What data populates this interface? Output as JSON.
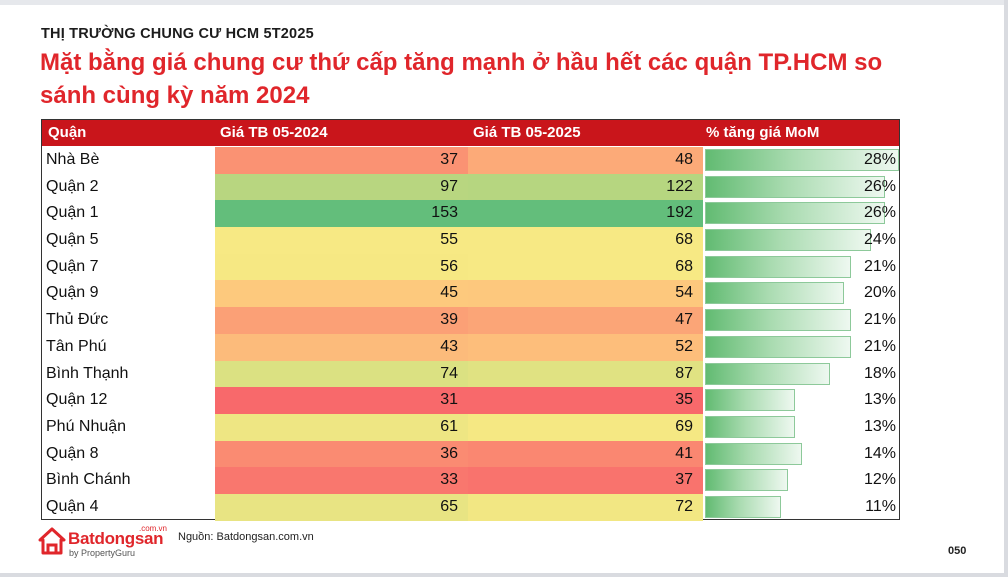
{
  "kicker": "THỊ TRƯỜNG CHUNG CƯ HCM 5T2025",
  "headline": "Mặt bằng giá chung cư thứ cấp tăng mạnh ở hầu hết các quận TP.HCM so sánh cùng kỳ năm 2024",
  "table": {
    "headers": {
      "district": "Quận",
      "price_2024": "Giá TB 05-2024",
      "price_2025": "Giá TB 05-2025",
      "mom": "% tăng giá MoM"
    }
  },
  "chart_data": {
    "type": "table",
    "columns": [
      "Quận",
      "Giá TB 05-2024",
      "Giá TB 05-2025",
      "% tăng giá MoM"
    ],
    "rows": [
      {
        "district": "Nhà Bè",
        "p24": 37,
        "p25": 48,
        "mom": 28,
        "mom_label": "28%"
      },
      {
        "district": "Quận 2",
        "p24": 97,
        "p25": 122,
        "mom": 26,
        "mom_label": "26%"
      },
      {
        "district": "Quận 1",
        "p24": 153,
        "p25": 192,
        "mom": 26,
        "mom_label": "26%"
      },
      {
        "district": "Quận 5",
        "p24": 55,
        "p25": 68,
        "mom": 24,
        "mom_label": "24%"
      },
      {
        "district": "Quận 7",
        "p24": 56,
        "p25": 68,
        "mom": 21,
        "mom_label": "21%"
      },
      {
        "district": "Quận 9",
        "p24": 45,
        "p25": 54,
        "mom": 20,
        "mom_label": "20%"
      },
      {
        "district": "Thủ Đức",
        "p24": 39,
        "p25": 47,
        "mom": 21,
        "mom_label": "21%"
      },
      {
        "district": "Tân Phú",
        "p24": 43,
        "p25": 52,
        "mom": 21,
        "mom_label": "21%"
      },
      {
        "district": "Bình Thạnh",
        "p24": 74,
        "p25": 87,
        "mom": 18,
        "mom_label": "18%"
      },
      {
        "district": "Quận 12",
        "p24": 31,
        "p25": 35,
        "mom": 13,
        "mom_label": "13%"
      },
      {
        "district": "Phú Nhuận",
        "p24": 61,
        "p25": 69,
        "mom": 13,
        "mom_label": "13%"
      },
      {
        "district": "Quận 8",
        "p24": 36,
        "p25": 41,
        "mom": 14,
        "mom_label": "14%"
      },
      {
        "district": "Bình Chánh",
        "p24": 33,
        "p25": 37,
        "mom": 12,
        "mom_label": "12%"
      },
      {
        "district": "Quận 4",
        "p24": 65,
        "p25": 72,
        "mom": 11,
        "mom_label": "11%"
      }
    ],
    "color_scale": {
      "low": "#f8696b",
      "mid": "#ffeb84",
      "high": "#63be7b"
    },
    "bar_color": "#63be7b"
  },
  "footer": {
    "brand": "Batdongsan",
    "brand_suffix": ".com.vn",
    "brand_by": "by PropertyGuru",
    "brand_color": "#e0262b",
    "source": "Nguồn: Batdongsan.com.vn",
    "page": "050"
  }
}
